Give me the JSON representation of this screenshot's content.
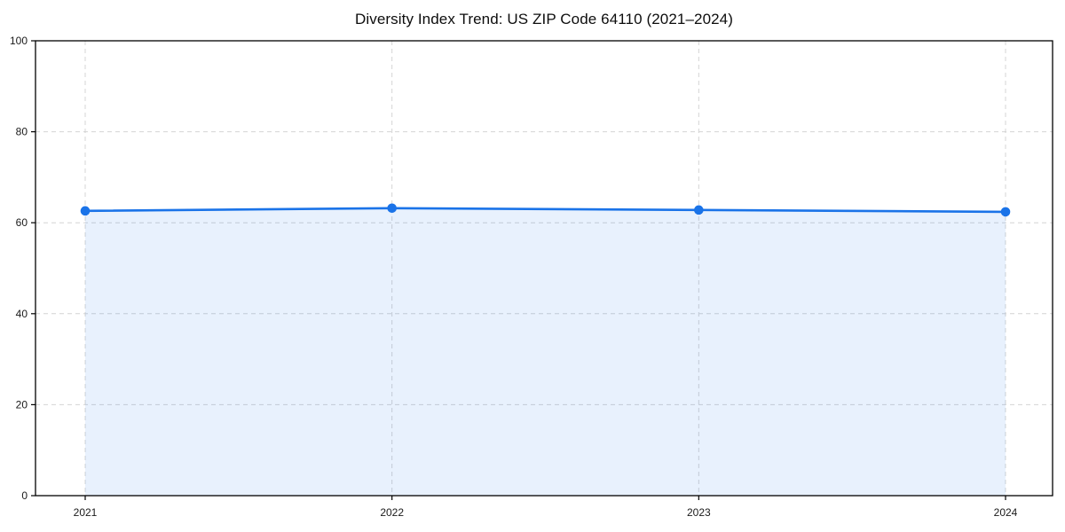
{
  "chart_data": {
    "type": "area",
    "title": "Diversity Index Trend: US ZIP Code 64110 (2021–2024)",
    "series_name": "Diversity Index",
    "x": [
      2021,
      2022,
      2023,
      2024
    ],
    "values": [
      62.6,
      63.2,
      62.8,
      62.4
    ],
    "xlabel": "",
    "ylabel": "",
    "ylim": [
      0,
      100
    ],
    "yticks": [
      0,
      20,
      40,
      60,
      80,
      100
    ],
    "grid": "dashed-both-axes",
    "legend_position": "none",
    "colors": {
      "line": "#1a73e8",
      "marker": "#1a73e8",
      "area": "rgba(26,115,232,0.10)",
      "grid": "#d4d4d4",
      "spine": "#000000",
      "tick_label": "#1a1a1a",
      "background": "#ffffff"
    }
  }
}
